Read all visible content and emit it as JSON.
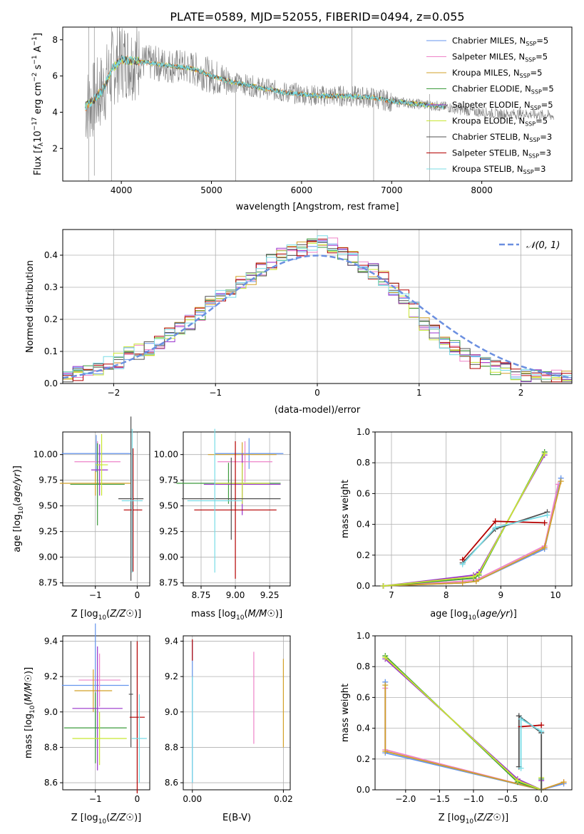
{
  "figure": {
    "title": "PLATE=0589, MJD=52055, FIBERID=0494, z=0.055"
  },
  "colors": {
    "Chabrier MILES": "#6495ED",
    "Salpeter MILES": "#EE82C8",
    "Kroupa MILES": "#D2A028",
    "Chabrier ELODIE": "#3C9B3C",
    "Salpeter ELODIE": "#9932CC",
    "Kroupa ELODIE": "#C8E632",
    "Chabrier STELIB": "#505050",
    "Salpeter STELIB": "#B40000",
    "Kroupa STELIB": "#78DCE6",
    "orange_model": "#F08040",
    "gaussian": "#6B8FE0",
    "data": "#808080"
  },
  "chart_data": [
    {
      "type": "line",
      "panel": "spectrum",
      "xlabel": "wavelength [Angstrom, rest frame]",
      "ylabel": "Flux [f_λ10^-17 erg cm^-2 s^-1 A^-1]",
      "xlim": [
        3350,
        9000
      ],
      "ylim": [
        0.2,
        8.7
      ],
      "xticks": [
        4000,
        5000,
        6000,
        7000,
        8000
      ],
      "yticks": [
        2,
        4,
        6,
        8
      ],
      "legend_position": "top-right",
      "legend": [
        {
          "name": "Chabrier MILES",
          "label": "Chabrier MILES, N",
          "sub": "SSP",
          "suffix": "=5"
        },
        {
          "name": "Salpeter MILES",
          "label": "Salpeter MILES, N",
          "sub": "SSP",
          "suffix": "=5"
        },
        {
          "name": "Kroupa MILES",
          "label": "Kroupa MILES, N",
          "sub": "SSP",
          "suffix": "=5"
        },
        {
          "name": "Chabrier ELODIE",
          "label": "Chabrier ELODIE, N",
          "sub": "SSP",
          "suffix": "=5"
        },
        {
          "name": "Salpeter ELODIE",
          "label": "Salpeter ELODIE, N",
          "sub": "SSP",
          "suffix": "=5"
        },
        {
          "name": "Kroupa ELODIE",
          "label": "Kroupa ELODIE, N",
          "sub": "SSP",
          "suffix": "=5"
        },
        {
          "name": "Chabrier STELIB",
          "label": "Chabrier STELIB, N",
          "sub": "SSP",
          "suffix": "=3"
        },
        {
          "name": "Salpeter STELIB",
          "label": "Salpeter STELIB, N",
          "sub": "SSP",
          "suffix": "=3"
        },
        {
          "name": "Kroupa STELIB",
          "label": "Kroupa STELIB, N",
          "sub": "SSP",
          "suffix": "=3"
        }
      ],
      "continuum": {
        "x": [
          3600,
          3700,
          3800,
          3900,
          4000,
          4200,
          4500,
          4800,
          5000,
          5200,
          5500,
          5800,
          6000,
          6200,
          6500,
          6800,
          7000,
          7200,
          7400,
          7600,
          7800,
          8000,
          8200,
          8500,
          8800
        ],
        "y": [
          4.3,
          4.7,
          5.3,
          6.4,
          6.9,
          6.8,
          6.6,
          6.4,
          6.0,
          5.7,
          5.4,
          5.1,
          5.0,
          4.9,
          4.9,
          4.8,
          4.6,
          4.5,
          4.4,
          4.3,
          4.1,
          4.0,
          3.9,
          3.9,
          3.8
        ]
      }
    },
    {
      "type": "line",
      "panel": "residual-histogram",
      "xlabel": "(data-model)/error",
      "ylabel": "Normed distribution",
      "xlim": [
        -2.5,
        2.5
      ],
      "ylim": [
        0,
        0.48
      ],
      "xticks": [
        -2,
        -1,
        0,
        1,
        2
      ],
      "yticks": [
        0.0,
        0.1,
        0.2,
        0.3,
        0.4
      ],
      "grid": true,
      "legend_position": "top-right",
      "legend_label": "𝒩(0, 1)",
      "gaussian": {
        "mean": 0,
        "sigma": 1
      },
      "bin_width": 0.1,
      "series_base": [
        0.02,
        0.03,
        0.04,
        0.05,
        0.06,
        0.07,
        0.09,
        0.1,
        0.11,
        0.13,
        0.15,
        0.17,
        0.19,
        0.22,
        0.25,
        0.28,
        0.29,
        0.31,
        0.33,
        0.36,
        0.38,
        0.4,
        0.41,
        0.42,
        0.43,
        0.44,
        0.43,
        0.41,
        0.39,
        0.37,
        0.35,
        0.33,
        0.3,
        0.27,
        0.23,
        0.19,
        0.16,
        0.13,
        0.11,
        0.09,
        0.07,
        0.06,
        0.05,
        0.04,
        0.03,
        0.02,
        0.02,
        0.02,
        0.02,
        0.02
      ]
    },
    {
      "type": "scatter",
      "panel": "age-vs-Z",
      "xlabel": "Z [log10(Z/Z☉)]",
      "ylabel": "age [log10(age/yr)]",
      "xlim": [
        -1.78,
        0.3
      ],
      "ylim": [
        8.72,
        10.22
      ],
      "xticks": [
        -1,
        0
      ],
      "yticks": [
        8.75,
        9.0,
        9.25,
        9.5,
        9.75,
        10.0
      ],
      "grid": true,
      "points": [
        {
          "series": "Chabrier MILES",
          "x": -0.98,
          "y": 10.01,
          "xe": 0.82,
          "ye": 0.18
        },
        {
          "series": "Salpeter MILES",
          "x": -0.95,
          "y": 9.93,
          "xe": 0.55,
          "ye": 0.2
        },
        {
          "series": "Kroupa MILES",
          "x": -1.0,
          "y": 9.72,
          "xe": 0.85,
          "ye": 0.12
        },
        {
          "series": "Chabrier ELODIE",
          "x": -0.95,
          "y": 9.71,
          "xe": 0.65,
          "ye": 0.4
        },
        {
          "series": "Salpeter ELODIE",
          "x": -0.9,
          "y": 9.85,
          "xe": 0.2,
          "ye": 0.25
        },
        {
          "series": "Kroupa ELODIE",
          "x": -0.85,
          "y": 9.9,
          "xe": 0.15,
          "ye": 0.3
        },
        {
          "series": "Chabrier STELIB",
          "x": -0.15,
          "y": 9.57,
          "xe": 0.3,
          "ye": 0.8
        },
        {
          "series": "Salpeter STELIB",
          "x": -0.1,
          "y": 9.46,
          "xe": 0.22,
          "ye": 0.6
        },
        {
          "series": "Kroupa STELIB",
          "x": -0.12,
          "y": 9.55,
          "xe": 0.25,
          "ye": 0.7
        }
      ]
    },
    {
      "type": "scatter",
      "panel": "age-vs-mass",
      "xlabel": "mass [log10(M/M☉)]",
      "ylabel": "",
      "xlim": [
        8.62,
        9.4
      ],
      "ylim": [
        8.72,
        10.22
      ],
      "xticks": [
        8.75,
        9.0,
        9.25
      ],
      "yticks": [
        8.75,
        9.0,
        9.25,
        9.5,
        9.75,
        10.0
      ],
      "grid": true,
      "points": [
        {
          "series": "Chabrier MILES",
          "x": 9.1,
          "y": 10.01,
          "xe": 0.25,
          "ye": 0.15
        },
        {
          "series": "Salpeter MILES",
          "x": 9.07,
          "y": 9.93,
          "xe": 0.2,
          "ye": 0.2
        },
        {
          "series": "Kroupa MILES",
          "x": 9.05,
          "y": 10.0,
          "xe": 0.25,
          "ye": 0.12
        },
        {
          "series": "Chabrier ELODIE",
          "x": 8.95,
          "y": 9.72,
          "xe": 0.38,
          "ye": 0.2
        },
        {
          "series": "Salpeter ELODIE",
          "x": 9.05,
          "y": 9.71,
          "xe": 0.28,
          "ye": 0.3
        },
        {
          "series": "Kroupa ELODIE",
          "x": 9.05,
          "y": 9.72,
          "xe": 0.2,
          "ye": 0.2
        },
        {
          "series": "Chabrier STELIB",
          "x": 8.97,
          "y": 9.57,
          "xe": 0.36,
          "ye": 0.4
        },
        {
          "series": "Salpeter STELIB",
          "x": 9.0,
          "y": 9.46,
          "xe": 0.3,
          "ye": 0.67
        },
        {
          "series": "Kroupa STELIB",
          "x": 8.85,
          "y": 9.55,
          "xe": 0.2,
          "ye": 0.7
        }
      ]
    },
    {
      "type": "line",
      "panel": "mass-weight-vs-age",
      "xlabel": "age [log10(age/yr)]",
      "ylabel": "mass weight",
      "xlim": [
        6.7,
        10.3
      ],
      "ylim": [
        0,
        1.0
      ],
      "xticks": [
        7,
        8,
        9,
        10
      ],
      "yticks": [
        0.0,
        0.2,
        0.4,
        0.6,
        0.8,
        1.0
      ],
      "grid": true,
      "series": [
        {
          "name": "Chabrier MILES",
          "x": [
            6.85,
            8.3,
            8.55,
            9.8,
            10.1
          ],
          "y": [
            0.0,
            0.02,
            0.03,
            0.24,
            0.7
          ]
        },
        {
          "name": "Salpeter MILES",
          "x": [
            6.85,
            8.3,
            8.55,
            9.8,
            10.05
          ],
          "y": [
            0.0,
            0.03,
            0.04,
            0.26,
            0.66
          ]
        },
        {
          "name": "Kroupa MILES",
          "x": [
            6.85,
            8.3,
            8.55,
            9.8,
            10.1
          ],
          "y": [
            0.0,
            0.02,
            0.03,
            0.25,
            0.68
          ]
        },
        {
          "name": "Chabrier ELODIE",
          "x": [
            6.85,
            8.5,
            8.6,
            9.8
          ],
          "y": [
            0.0,
            0.05,
            0.07,
            0.87
          ]
        },
        {
          "name": "Salpeter ELODIE",
          "x": [
            6.85,
            8.5,
            8.6,
            9.8
          ],
          "y": [
            0.0,
            0.07,
            0.09,
            0.85
          ]
        },
        {
          "name": "Kroupa ELODIE",
          "x": [
            6.85,
            8.5,
            8.6,
            9.8
          ],
          "y": [
            0.0,
            0.06,
            0.08,
            0.86
          ]
        },
        {
          "name": "Chabrier STELIB",
          "x": [
            8.3,
            8.9,
            9.85
          ],
          "y": [
            0.15,
            0.37,
            0.48
          ]
        },
        {
          "name": "Salpeter STELIB",
          "x": [
            8.3,
            8.9,
            9.8
          ],
          "y": [
            0.17,
            0.42,
            0.41
          ]
        },
        {
          "name": "Kroupa STELIB",
          "x": [
            8.3,
            8.9,
            9.85
          ],
          "y": [
            0.14,
            0.38,
            0.46
          ]
        }
      ]
    },
    {
      "type": "scatter",
      "panel": "mass-vs-Z",
      "xlabel": "Z [log10(Z/Z☉)]",
      "ylabel": "mass [log10(M/M☉)]",
      "xlim": [
        -1.78,
        0.3
      ],
      "ylim": [
        8.56,
        9.43
      ],
      "xticks": [
        -1,
        0
      ],
      "yticks": [
        8.6,
        8.8,
        9.0,
        9.2,
        9.4
      ],
      "grid": true,
      "points": [
        {
          "series": "Chabrier MILES",
          "x": -1.0,
          "y": 9.15,
          "xe": 0.8,
          "ye": 0.35
        },
        {
          "series": "Salpeter MILES",
          "x": -0.9,
          "y": 9.18,
          "xe": 0.5,
          "ye": 0.15
        },
        {
          "series": "Kroupa MILES",
          "x": -1.05,
          "y": 9.12,
          "xe": 0.45,
          "ye": 0.12
        },
        {
          "series": "Chabrier ELODIE",
          "x": -1.0,
          "y": 8.91,
          "xe": 0.75,
          "ye": 0.2
        },
        {
          "series": "Salpeter ELODIE",
          "x": -0.95,
          "y": 9.02,
          "xe": 0.6,
          "ye": 0.35
        },
        {
          "series": "Kroupa ELODIE",
          "x": -0.9,
          "y": 8.85,
          "xe": 0.65,
          "ye": 0.15
        },
        {
          "series": "Chabrier STELIB",
          "x": -0.15,
          "y": 9.1,
          "xe": 0.05,
          "ye": 0.3
        },
        {
          "series": "Salpeter STELIB",
          "x": 0.0,
          "y": 8.97,
          "xe": 0.18,
          "ye": 0.43
        },
        {
          "series": "Kroupa STELIB",
          "x": 0.05,
          "y": 8.85,
          "xe": 0.18,
          "ye": 0.25
        }
      ]
    },
    {
      "type": "scatter",
      "panel": "mass-vs-EBV",
      "xlabel": "E(B-V)",
      "ylabel": "",
      "xlim": [
        -0.002,
        0.0215
      ],
      "ylim": [
        8.56,
        9.43
      ],
      "xticks": [
        0.0,
        0.02
      ],
      "xtick_labels": [
        "0.00",
        "0.02"
      ],
      "yticks": [
        8.6,
        8.8,
        9.0,
        9.2,
        9.4
      ],
      "grid": true,
      "points": [
        {
          "series": "Chabrier MILES",
          "x": 0.0,
          "y": 9.0,
          "ye": 0.4
        },
        {
          "series": "Salpeter MILES",
          "x": 0.0135,
          "y": 9.08,
          "ye": 0.26
        },
        {
          "series": "Kroupa MILES",
          "x": 0.02,
          "y": 9.05,
          "ye": 0.25
        },
        {
          "series": "Salpeter STELIB",
          "x": 0.0,
          "y": 9.35,
          "ye": 0.06
        },
        {
          "series": "Kroupa STELIB",
          "x": 0.0,
          "y": 8.9,
          "ye": 0.3
        }
      ]
    },
    {
      "type": "line",
      "panel": "mass-weight-vs-Z",
      "xlabel": "Z [log10(Z/Z☉)]",
      "ylabel": "mass weight",
      "xlim": [
        -2.45,
        0.45
      ],
      "ylim": [
        0,
        1.0
      ],
      "xticks": [
        -2.0,
        -1.5,
        -1.0,
        -0.5,
        0.0
      ],
      "yticks": [
        0.0,
        0.2,
        0.4,
        0.6,
        0.8,
        1.0
      ],
      "grid": true,
      "series": [
        {
          "name": "Chabrier MILES",
          "x": [
            -2.3,
            -2.3,
            0.0,
            0.33
          ],
          "y": [
            0.7,
            0.24,
            0.0,
            0.04
          ]
        },
        {
          "name": "Salpeter MILES",
          "x": [
            -2.3,
            -2.3,
            0.0,
            0.33
          ],
          "y": [
            0.66,
            0.26,
            0.0,
            0.05
          ]
        },
        {
          "name": "Kroupa MILES",
          "x": [
            -2.3,
            -2.3,
            0.0,
            0.33
          ],
          "y": [
            0.68,
            0.25,
            0.0,
            0.05
          ]
        },
        {
          "name": "Chabrier ELODIE",
          "x": [
            -2.3,
            -0.35,
            0.0,
            0.0
          ],
          "y": [
            0.87,
            0.05,
            0.0,
            0.07
          ]
        },
        {
          "name": "Salpeter ELODIE",
          "x": [
            -2.3,
            -0.35,
            0.0,
            0.0
          ],
          "y": [
            0.85,
            0.07,
            0.0,
            0.06
          ]
        },
        {
          "name": "Kroupa ELODIE",
          "x": [
            -2.3,
            -0.35,
            0.0,
            0.0
          ],
          "y": [
            0.86,
            0.06,
            0.0,
            0.08
          ]
        },
        {
          "name": "Chabrier STELIB",
          "x": [
            -0.33,
            -0.33,
            0.0,
            0.0
          ],
          "y": [
            0.15,
            0.48,
            0.37,
            0.0
          ]
        },
        {
          "name": "Salpeter STELIB",
          "x": [
            -0.3,
            0.0
          ],
          "y": [
            0.41,
            0.42
          ]
        },
        {
          "name": "Kroupa STELIB",
          "x": [
            -0.3,
            -0.3,
            0.0
          ],
          "y": [
            0.14,
            0.46,
            0.38
          ]
        }
      ]
    }
  ]
}
